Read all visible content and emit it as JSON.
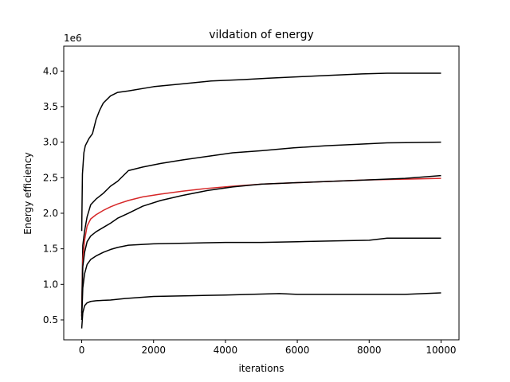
{
  "chart_data": {
    "type": "line",
    "title": "vildation of energy",
    "xlabel": "iterations",
    "ylabel": "Energy efficiency",
    "y_offset_label": "1e6",
    "xlim": [
      -500,
      10500
    ],
    "ylim": [
      0.22,
      4.35
    ],
    "x_ticks": [
      0,
      2000,
      4000,
      6000,
      8000,
      10000
    ],
    "x_tick_labels": [
      "0",
      "2000",
      "4000",
      "6000",
      "8000",
      "10000"
    ],
    "y_ticks": [
      0.5,
      1.0,
      1.5,
      2.0,
      2.5,
      3.0,
      3.5,
      4.0
    ],
    "y_tick_labels": [
      "0.5",
      "1.0",
      "1.5",
      "2.0",
      "2.5",
      "3.0",
      "3.5",
      "4.0"
    ],
    "grid": false,
    "series": [
      {
        "color": "#000000",
        "x": [
          0,
          20,
          60,
          100,
          150,
          200,
          300,
          400,
          500,
          600,
          800,
          1000,
          1300,
          2000,
          2800,
          3600,
          4500,
          5200,
          6500,
          7800,
          8500,
          10000
        ],
        "y": [
          1.75,
          2.55,
          2.85,
          2.95,
          3.0,
          3.05,
          3.12,
          3.32,
          3.45,
          3.55,
          3.65,
          3.7,
          3.72,
          3.78,
          3.82,
          3.86,
          3.88,
          3.9,
          3.93,
          3.96,
          3.97,
          3.97
        ]
      },
      {
        "color": "#000000",
        "x": [
          0,
          30,
          80,
          150,
          250,
          400,
          600,
          800,
          1000,
          1300,
          1700,
          2200,
          2800,
          3500,
          4200,
          5000,
          5900,
          6800,
          7700,
          8500,
          10000
        ],
        "y": [
          0.6,
          1.55,
          1.75,
          1.95,
          2.12,
          2.2,
          2.28,
          2.38,
          2.45,
          2.6,
          2.65,
          2.7,
          2.75,
          2.8,
          2.85,
          2.88,
          2.92,
          2.95,
          2.97,
          2.99,
          3.0
        ]
      },
      {
        "color": "#d62728",
        "x": [
          0,
          30,
          80,
          150,
          250,
          400,
          600,
          800,
          1000,
          1300,
          1700,
          2200,
          2800,
          3500,
          4200,
          5000,
          6000,
          7000,
          8000,
          9000,
          10000
        ],
        "y": [
          0.55,
          1.35,
          1.62,
          1.82,
          1.92,
          1.98,
          2.04,
          2.09,
          2.13,
          2.18,
          2.23,
          2.27,
          2.31,
          2.35,
          2.38,
          2.41,
          2.43,
          2.45,
          2.47,
          2.48,
          2.49
        ]
      },
      {
        "color": "#000000",
        "x": [
          0,
          30,
          80,
          150,
          250,
          400,
          600,
          800,
          1000,
          1300,
          1700,
          2200,
          2800,
          3500,
          4200,
          5000,
          6000,
          7000,
          8000,
          9000,
          10000
        ],
        "y": [
          0.55,
          1.25,
          1.45,
          1.6,
          1.68,
          1.74,
          1.8,
          1.86,
          1.93,
          2.0,
          2.1,
          2.18,
          2.25,
          2.32,
          2.37,
          2.41,
          2.43,
          2.45,
          2.47,
          2.49,
          2.53
        ]
      },
      {
        "color": "#000000",
        "x": [
          0,
          30,
          80,
          150,
          250,
          400,
          600,
          800,
          1000,
          1300,
          2000,
          3000,
          4000,
          5000,
          6000,
          7000,
          8000,
          8500,
          10000
        ],
        "y": [
          0.5,
          0.95,
          1.15,
          1.28,
          1.35,
          1.4,
          1.45,
          1.49,
          1.52,
          1.55,
          1.57,
          1.58,
          1.59,
          1.59,
          1.6,
          1.61,
          1.62,
          1.65,
          1.65
        ]
      },
      {
        "color": "#000000",
        "x": [
          0,
          30,
          80,
          150,
          250,
          400,
          800,
          1200,
          2000,
          3000,
          4000,
          5500,
          6000,
          7000,
          8000,
          9000,
          10000
        ],
        "y": [
          0.38,
          0.6,
          0.7,
          0.74,
          0.76,
          0.77,
          0.78,
          0.8,
          0.83,
          0.84,
          0.85,
          0.87,
          0.86,
          0.86,
          0.86,
          0.86,
          0.88
        ]
      }
    ]
  }
}
